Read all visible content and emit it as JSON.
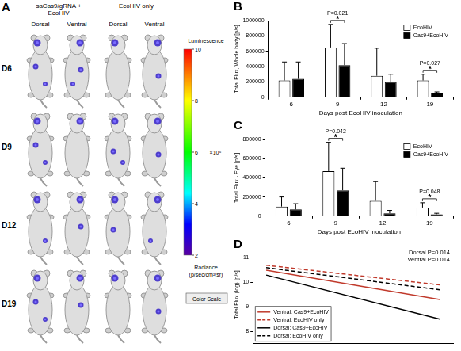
{
  "image_panel": {
    "panel_label": "A",
    "groups": [
      "saCas9/gRNA + EcoHIV",
      "EcoHIV only"
    ],
    "views": [
      "Dorsal",
      "Ventral"
    ],
    "rows": [
      "D6",
      "D9",
      "D12",
      "D19"
    ],
    "color_bar": {
      "title": "Luminescence",
      "range": [
        2,
        10
      ],
      "ticks": [
        2,
        4,
        6,
        8,
        10
      ],
      "scale_label": "×10⁵",
      "unit": "Radiance (p/sec/cm²/sr)",
      "button": "Color Scale"
    }
  },
  "chart_data": [
    {
      "panel_label": "B",
      "type": "bar",
      "categories": [
        "6",
        "9",
        "12",
        "19"
      ],
      "x_label": "Days post EcoHIV inoculation",
      "y_label": "Total Flux, Whole body [p/s]",
      "series": [
        {
          "name": "EcoHIV",
          "color": "#ffffff",
          "values": [
            220000,
            650000,
            280000,
            220000
          ],
          "errors": [
            240000,
            300000,
            360000,
            80000
          ]
        },
        {
          "name": "Cas9+EcoHIV",
          "color": "#000000",
          "values": [
            240000,
            420000,
            200000,
            50000
          ],
          "errors": [
            220000,
            280000,
            100000,
            20000
          ]
        }
      ],
      "ylim": [
        0,
        1000000
      ],
      "yticks": [
        0,
        200000,
        400000,
        600000,
        800000,
        1000000
      ],
      "grid": false,
      "legend": "upper right",
      "annotations": [
        {
          "category": "9",
          "text": "P=0.021"
        },
        {
          "category": "9",
          "text": "*"
        },
        {
          "category": "19",
          "text": "P=0.027"
        },
        {
          "category": "19",
          "text": "*"
        }
      ]
    },
    {
      "panel_label": "C",
      "type": "bar",
      "categories": [
        "6",
        "9",
        "12",
        "19"
      ],
      "x_label": "Days post EcoHIV inoculation",
      "y_label": "Total Flux - Eye [p/s]",
      "series": [
        {
          "name": "EcoHIV",
          "color": "#ffffff",
          "values": [
            100000,
            470000,
            160000,
            90000
          ],
          "errors": [
            100000,
            300000,
            200000,
            50000
          ]
        },
        {
          "name": "Cas9+EcoHIV",
          "color": "#000000",
          "values": [
            70000,
            270000,
            30000,
            20000
          ],
          "errors": [
            60000,
            230000,
            30000,
            10000
          ]
        }
      ],
      "ylim": [
        0,
        800000
      ],
      "yticks": [
        0,
        200000,
        400000,
        600000,
        800000
      ],
      "grid": false,
      "legend": "upper right",
      "annotations": [
        {
          "category": "9",
          "text": "P=0.042"
        },
        {
          "category": "9",
          "text": "*"
        },
        {
          "category": "19",
          "text": "P=0.048"
        },
        {
          "category": "19",
          "text": "*"
        }
      ]
    },
    {
      "panel_label": "D",
      "type": "line",
      "x": [
        6,
        19
      ],
      "xlim": [
        5,
        20
      ],
      "ylim": [
        7.5,
        11.5
      ],
      "yticks": [
        8,
        9,
        10,
        11
      ],
      "y_label": "Total Flux (log) [p/s]",
      "tick_labels": "y",
      "grid": false,
      "legend": "lower left",
      "series": [
        {
          "name": "Ventral: Cas9+EcoHIV",
          "color": "#c0392b",
          "line_style": "solid",
          "values": [
            10.5,
            9.3
          ]
        },
        {
          "name": "Ventral: EcoHIV only",
          "color": "#c0392b",
          "line_style": "dashed",
          "values": [
            10.7,
            9.9
          ]
        },
        {
          "name": "Dorsal: Cas9+EcoHIV",
          "color": "#000000",
          "line_style": "solid",
          "values": [
            10.3,
            8.5
          ]
        },
        {
          "name": "Dorsal: EcoHIV only",
          "color": "#000000",
          "line_style": "dashed",
          "values": [
            10.6,
            9.7
          ]
        }
      ],
      "annotations": [
        "Dorsal P=0.014",
        "Ventral P=0.014"
      ]
    }
  ]
}
